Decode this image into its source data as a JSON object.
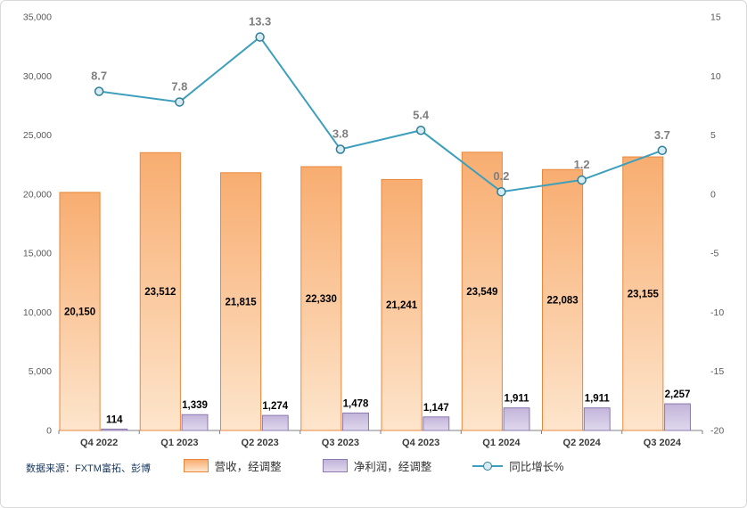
{
  "chart_data": {
    "type": "combo",
    "categories": [
      "Q4 2022",
      "Q1 2023",
      "Q2 2023",
      "Q3 2023",
      "Q4 2023",
      "Q1 2024",
      "Q2 2024",
      "Q3 2024"
    ],
    "series": [
      {
        "name": "营收，经调整",
        "type": "bar",
        "values": [
          20150,
          23512,
          21815,
          22330,
          21241,
          23549,
          22083,
          23155
        ],
        "color": "#E8873C",
        "fill_top": "#F8AD70",
        "fill_bottom": "#FDE5CC",
        "axis": "left"
      },
      {
        "name": "净利润，经调整",
        "type": "bar",
        "values": [
          114,
          1339,
          1274,
          1478,
          1147,
          1911,
          1911,
          2257
        ],
        "color": "#8C79AE",
        "fill_top": "#C3B4DA",
        "fill_bottom": "#DFD8EC",
        "axis": "left"
      },
      {
        "name": "同比增长%",
        "type": "line",
        "values": [
          8.7,
          7.8,
          13.3,
          3.8,
          5.4,
          0.2,
          1.2,
          3.7
        ],
        "color": "#3E9FBC",
        "marker_fill": "#D6EBF2",
        "marker_stroke": "#2E7E97",
        "axis": "right"
      }
    ],
    "left_axis": {
      "min": 0,
      "max": 35000,
      "step": 5000,
      "ticks": [
        "0",
        "5,000",
        "10,000",
        "15,000",
        "20,000",
        "25,000",
        "30,000",
        "35,000"
      ]
    },
    "right_axis": {
      "min": -20,
      "max": 15,
      "step": 5,
      "ticks": [
        "-20",
        "-15",
        "-10",
        "-5",
        "0",
        "5",
        "10",
        "15"
      ]
    },
    "grid": false,
    "legend_position": "bottom",
    "source": "数据来源：FXTM富拓、彭博"
  }
}
